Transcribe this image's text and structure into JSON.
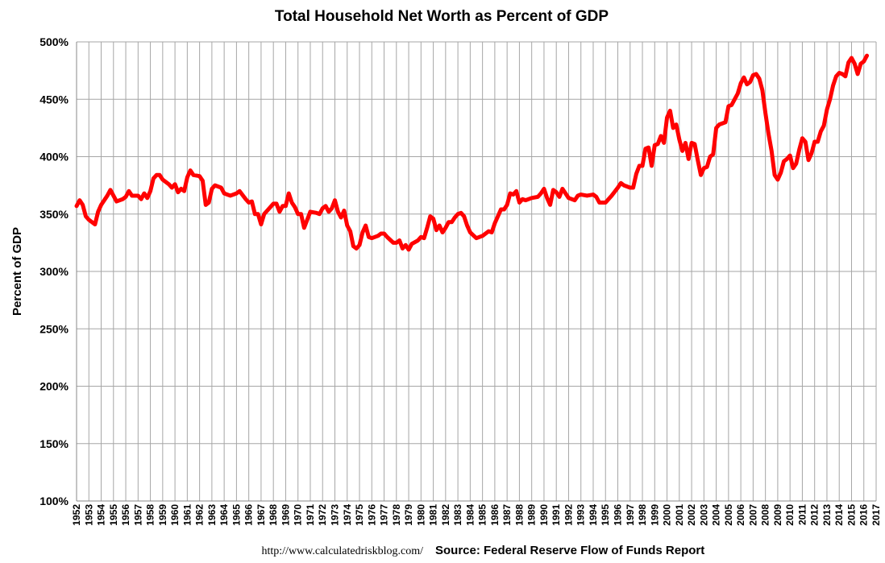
{
  "chart_data": {
    "type": "line",
    "title": "Total Household Net Worth as Percent of GDP",
    "y_label": "Percent of GDP",
    "footer_url": "http://www.calculatedriskblog.com/",
    "footer_source": "Source: Federal Reserve Flow of Funds Report",
    "xlim": [
      1952,
      2017
    ],
    "xticks": [
      1952,
      1953,
      1954,
      1955,
      1956,
      1957,
      1958,
      1959,
      1960,
      1961,
      1962,
      1963,
      1964,
      1965,
      1966,
      1967,
      1968,
      1969,
      1970,
      1971,
      1972,
      1973,
      1974,
      1975,
      1976,
      1977,
      1978,
      1979,
      1980,
      1981,
      1982,
      1983,
      1984,
      1985,
      1986,
      1987,
      1988,
      1989,
      1990,
      1991,
      1992,
      1993,
      1994,
      1995,
      1996,
      1997,
      1998,
      1999,
      2000,
      2001,
      2002,
      2003,
      2004,
      2005,
      2006,
      2007,
      2008,
      2009,
      2010,
      2011,
      2012,
      2013,
      2014,
      2015,
      2016,
      2017
    ],
    "ylim": [
      100,
      500
    ],
    "yticks": [
      {
        "value": 100,
        "label": "100%"
      },
      {
        "value": 150,
        "label": "150%"
      },
      {
        "value": 200,
        "label": "200%"
      },
      {
        "value": 250,
        "label": "250%"
      },
      {
        "value": 300,
        "label": "300%"
      },
      {
        "value": 350,
        "label": "350%"
      },
      {
        "value": 400,
        "label": "400%"
      },
      {
        "value": 450,
        "label": "450%"
      },
      {
        "value": 500,
        "label": "500%"
      }
    ],
    "grid": true,
    "series": [
      {
        "name": "Household Net Worth",
        "color": "#ff0000",
        "x": [
          1952,
          1952.25,
          1952.5,
          1952.75,
          1953,
          1953.5,
          1953.75,
          1954,
          1954.5,
          1954.75,
          1955,
          1955.25,
          1955.75,
          1956,
          1956.25,
          1956.5,
          1957,
          1957.25,
          1957.5,
          1957.75,
          1958,
          1958.25,
          1958.5,
          1958.75,
          1959,
          1959.5,
          1959.75,
          1960,
          1960.25,
          1960.5,
          1960.75,
          1961,
          1961.25,
          1961.5,
          1962,
          1962.25,
          1962.5,
          1962.75,
          1963,
          1963.25,
          1963.75,
          1964,
          1964.5,
          1965,
          1965.25,
          1965.75,
          1966,
          1966.25,
          1966.5,
          1966.75,
          1967,
          1967.25,
          1967.5,
          1968,
          1968.25,
          1968.5,
          1968.75,
          1969,
          1969.25,
          1969.5,
          1969.75,
          1970,
          1970.25,
          1970.5,
          1970.75,
          1971,
          1971.5,
          1971.75,
          1972,
          1972.25,
          1972.5,
          1972.75,
          1973,
          1973.25,
          1973.5,
          1973.75,
          1974,
          1974.25,
          1974.5,
          1974.75,
          1975,
          1975.25,
          1975.5,
          1975.75,
          1976,
          1976.5,
          1976.75,
          1977,
          1977.25,
          1977.75,
          1978,
          1978.25,
          1978.5,
          1978.75,
          1979,
          1979.25,
          1979.75,
          1980,
          1980.25,
          1980.5,
          1980.75,
          1981,
          1981.25,
          1981.5,
          1981.75,
          1982,
          1982.25,
          1982.5,
          1982.75,
          1983,
          1983.25,
          1983.5,
          1983.75,
          1984,
          1984.5,
          1985,
          1985.5,
          1985.75,
          1986,
          1986.25,
          1986.5,
          1986.75,
          1987,
          1987.25,
          1987.5,
          1987.75,
          1988,
          1988.25,
          1988.5,
          1989,
          1989.5,
          1989.75,
          1990,
          1990.25,
          1990.5,
          1990.75,
          1991,
          1991.25,
          1991.5,
          1991.75,
          1992,
          1992.5,
          1992.75,
          1993,
          1993.5,
          1994,
          1994.25,
          1994.5,
          1995,
          1995.5,
          1996,
          1996.25,
          1996.5,
          1997,
          1997.25,
          1997.5,
          1997.75,
          1998,
          1998.25,
          1998.5,
          1998.75,
          1999,
          1999.25,
          1999.5,
          1999.75,
          2000,
          2000.25,
          2000.5,
          2000.75,
          2001,
          2001.25,
          2001.5,
          2001.75,
          2002,
          2002.25,
          2002.5,
          2002.75,
          2003,
          2003.25,
          2003.5,
          2003.75,
          2004,
          2004.25,
          2004.75,
          2005,
          2005.25,
          2005.75,
          2006,
          2006.25,
          2006.5,
          2006.75,
          2007,
          2007.25,
          2007.5,
          2007.75,
          2008,
          2008.25,
          2008.5,
          2008.75,
          2009,
          2009.25,
          2009.5,
          2009.75,
          2010,
          2010.25,
          2010.5,
          2010.75,
          2011,
          2011.25,
          2011.5,
          2011.75,
          2012,
          2012.25,
          2012.5,
          2012.75,
          2013,
          2013.25,
          2013.5,
          2013.75,
          2014,
          2014.25,
          2014.5,
          2014.75,
          2015,
          2015.25,
          2015.5,
          2015.75,
          2016,
          2016.25
        ],
        "values": [
          357,
          362,
          358,
          348,
          345,
          341,
          352,
          358,
          366,
          371,
          366,
          361,
          363,
          365,
          370,
          366,
          366,
          363,
          368,
          364,
          370,
          381,
          384,
          384,
          380,
          376,
          373,
          376,
          369,
          372,
          370,
          382,
          388,
          384,
          383,
          379,
          358,
          360,
          372,
          375,
          373,
          368,
          366,
          368,
          370,
          363,
          360,
          361,
          350,
          350,
          341,
          350,
          353,
          359,
          359,
          352,
          357,
          357,
          368,
          360,
          356,
          350,
          350,
          338,
          345,
          352,
          351,
          350,
          355,
          357,
          352,
          355,
          362,
          352,
          347,
          353,
          340,
          335,
          322,
          320,
          323,
          334,
          340,
          330,
          329,
          331,
          333,
          333,
          330,
          325,
          325,
          327,
          320,
          323,
          319,
          324,
          327,
          330,
          329,
          338,
          348,
          346,
          336,
          340,
          334,
          338,
          343,
          343,
          347,
          350,
          351,
          348,
          340,
          334,
          329,
          331,
          335,
          334,
          342,
          348,
          354,
          354,
          358,
          368,
          367,
          370,
          360,
          363,
          362,
          364,
          365,
          368,
          372,
          364,
          358,
          371,
          369,
          365,
          372,
          368,
          364,
          362,
          366,
          367,
          366,
          367,
          365,
          360,
          360,
          366,
          373,
          377,
          375,
          373,
          373,
          385,
          392,
          392,
          407,
          408,
          392,
          410,
          411,
          418,
          412,
          434,
          440,
          425,
          428,
          415,
          405,
          412,
          398,
          412,
          411,
          397,
          384,
          390,
          391,
          400,
          402,
          425,
          428,
          430,
          444,
          445,
          455,
          464,
          469,
          463,
          465,
          471,
          472,
          468,
          458,
          438,
          420,
          405,
          384,
          380,
          386,
          396,
          398,
          401,
          390,
          394,
          406,
          416,
          413,
          397,
          403,
          413,
          413,
          422,
          427,
          441,
          450,
          462,
          470,
          473,
          472,
          470,
          482,
          486,
          481,
          472,
          481,
          483,
          488
        ]
      }
    ]
  }
}
